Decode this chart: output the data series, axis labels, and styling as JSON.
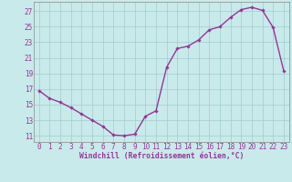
{
  "x": [
    0,
    1,
    2,
    3,
    4,
    5,
    6,
    7,
    8,
    9,
    10,
    11,
    12,
    13,
    14,
    15,
    16,
    17,
    18,
    19,
    20,
    21,
    22,
    23
  ],
  "y": [
    16.8,
    15.8,
    15.3,
    14.6,
    13.8,
    13.0,
    12.2,
    11.1,
    11.0,
    11.2,
    13.5,
    14.2,
    19.8,
    22.2,
    22.5,
    23.3,
    24.6,
    25.0,
    26.2,
    27.2,
    27.5,
    27.1,
    24.9,
    19.3
  ],
  "line_color": "#993399",
  "marker": "D",
  "marker_size": 1.8,
  "bg_color": "#c8eaea",
  "grid_color": "#a0cccc",
  "xlabel": "Windchill (Refroidissement éolien,°C)",
  "xlabel_color": "#993399",
  "tick_color": "#993399",
  "ytick_labels": [
    "11",
    "13",
    "15",
    "17",
    "19",
    "21",
    "23",
    "25",
    "27"
  ],
  "ytick_vals": [
    11,
    13,
    15,
    17,
    19,
    21,
    23,
    25,
    27
  ],
  "xtick_labels": [
    "0",
    "1",
    "2",
    "3",
    "4",
    "5",
    "6",
    "7",
    "8",
    "9",
    "10",
    "11",
    "12",
    "13",
    "14",
    "15",
    "16",
    "17",
    "18",
    "19",
    "20",
    "21",
    "22",
    "23"
  ],
  "xtick_vals": [
    0,
    1,
    2,
    3,
    4,
    5,
    6,
    7,
    8,
    9,
    10,
    11,
    12,
    13,
    14,
    15,
    16,
    17,
    18,
    19,
    20,
    21,
    22,
    23
  ],
  "ylim": [
    10.2,
    28.2
  ],
  "xlim": [
    -0.5,
    23.5
  ],
  "linewidth": 1.0,
  "spine_color": "#888888",
  "xlabel_fontsize": 5.8,
  "tick_fontsize": 5.5
}
